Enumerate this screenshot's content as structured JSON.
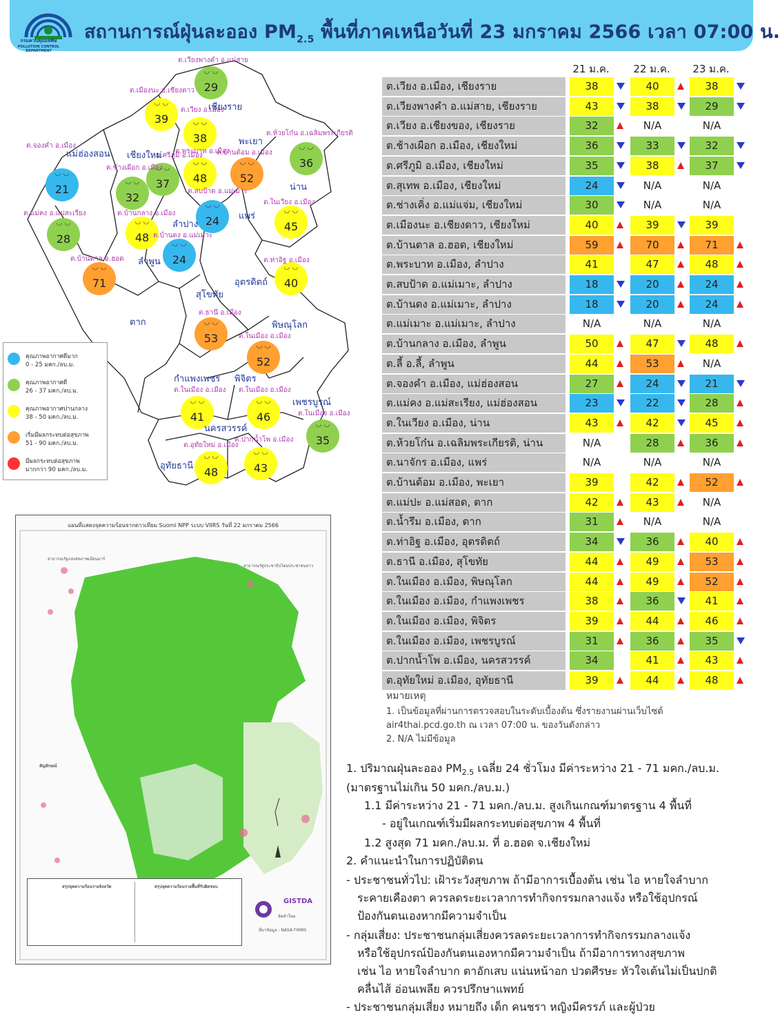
{
  "header": {
    "title_pre": "สถานการณ์ฝุ่นละออง PM",
    "title_sub": "2.5",
    "title_post": " พื้นที่ภาคเหนือวันที่ 23 มกราคม 2566 เวลา 07:00 น.",
    "logo_caption": "กรมควบคุมมลพิษ",
    "logo_caption_en": "POLLUTION CONTROL DEPARTMENT"
  },
  "colors": {
    "blue": "#36b8ee",
    "green": "#8fd14f",
    "yellow": "#ffff1a",
    "orange": "#ffa030",
    "red": "#ff3333"
  },
  "map": {
    "bubbles": [
      {
        "v": "29",
        "c": "green"
      },
      {
        "v": "39",
        "c": "yellow"
      },
      {
        "v": "38",
        "c": "yellow"
      },
      {
        "v": "36",
        "c": "green"
      },
      {
        "v": "21",
        "c": "blue"
      },
      {
        "v": "32",
        "c": "green"
      },
      {
        "v": "37",
        "c": "green"
      },
      {
        "v": "48",
        "c": "yellow"
      },
      {
        "v": "52",
        "c": "orange"
      },
      {
        "v": "24",
        "c": "blue"
      },
      {
        "v": "45",
        "c": "yellow"
      },
      {
        "v": "28",
        "c": "green"
      },
      {
        "v": "48",
        "c": "yellow"
      },
      {
        "v": "24",
        "c": "blue"
      },
      {
        "v": "71",
        "c": "orange"
      },
      {
        "v": "40",
        "c": "yellow"
      },
      {
        "v": "53",
        "c": "orange"
      },
      {
        "v": "52",
        "c": "orange"
      },
      {
        "v": "41",
        "c": "yellow"
      },
      {
        "v": "46",
        "c": "yellow"
      },
      {
        "v": "35",
        "c": "green"
      },
      {
        "v": "48",
        "c": "yellow"
      },
      {
        "v": "43",
        "c": "yellow"
      }
    ],
    "station_labels": [
      "ต.เวียงพางคำ อ.แม่สาย",
      "ต.เมืองนะ อ.เชียงดาว",
      "ต.เวียง อ.เมือง",
      "ต.ห้วยโก๋น อ.เฉลิมพระเกียรติ",
      "ต.จองคำ อ.เมือง",
      "ต.ศรีภูมิ อ.เมือง",
      "ต.พระบาท อ.เมือง",
      "ต.บ้านต้อม อ.เมือง",
      "ต.ช้างเผือก อ.เมือง",
      "ต.สบป้าด อ.แม่เมาะ",
      "ต.ในเวียง อ.เมือง",
      "ต.แม่คง อ.แม่สะเรียง",
      "ต.บ้านกลาง อ.เมือง",
      "ต.บ้านดง อ.แม่เมาะ",
      "ต.บ้านตาล อ.ฮอด",
      "ต.ท่าอิฐ อ.เมือง",
      "ต.ธานี อ.เมือง",
      "ต.ในเมือง อ.เมือง",
      "ต.ในเมือง อ.เมือง",
      "ต.ในเมือง อ.เมือง",
      "ต.ในเมือง อ.เมือง",
      "ต.อุทัยใหม่ อ.เมือง",
      "ต.ปากน้ำโพ อ.เมือง"
    ],
    "provinces": [
      "เชียงราย",
      "แม่ฮ่องสอน",
      "เชียงใหม่",
      "พะเยา",
      "น่าน",
      "ลำปาง",
      "แพร่",
      "ลำพูน",
      "อุตรดิตถ์",
      "สุโขทัย",
      "ตาก",
      "พิษณุโลก",
      "กำแพงเพชร",
      "พิจิตร",
      "เพชรบูรณ์",
      "นครสวรรค์",
      "อุทัยธานี"
    ]
  },
  "legend": [
    {
      "t1": "คุณภาพอากาศดีมาก",
      "t2": "0 - 25 มคก./ลบ.ม.",
      "c": "blue"
    },
    {
      "t1": "คุณภาพอากาศดี",
      "t2": "26 - 37 มคก./ลบ.ม.",
      "c": "green"
    },
    {
      "t1": "คุณภาพอากาศปานกลาง",
      "t2": "38 - 50 มคก./ลบ.ม.",
      "c": "yellow"
    },
    {
      "t1": "เริ่มมีผลกระทบต่อสุขภาพ",
      "t2": "51 - 90 มคก./ลบ.ม.",
      "c": "orange"
    },
    {
      "t1": "มีผลกระทบต่อสุขภาพ",
      "t2": "มากกว่า 90 มคก./ลบ.ม.",
      "c": "red"
    }
  ],
  "satellite": {
    "title": "แผนที่แสดงจุดความร้อนจากดาวเทียม Suomi NPP ระบบ VIIRS วันที่ 22 มกราคม 2566",
    "neighbor_1": "สาธารณรัฐแห่งสหภาพเมียนมาร์",
    "neighbor_2": "สาธารณรัฐประชาธิปไตยประชาชนลาว",
    "symbols": "สัญลักษณ์",
    "box_left": "สรุปจุดความร้อนรายจังหวัด",
    "box_right": "สรุปจุดความร้อนรายพื้นที่รับผิดชอบ",
    "source": "ที่มาข้อมูล : NASA FIRMS",
    "gistda": "GISTDA",
    "maker": "จัดทำโดย"
  },
  "table": {
    "col_headers": [
      "21 ม.ค.",
      "22 ม.ค.",
      "23 ม.ค."
    ],
    "rows": [
      {
        "loc": "ต.เวียง อ.เมือง, เชียงราย",
        "v": [
          [
            "38",
            "yellow",
            "down"
          ],
          [
            "40",
            "yellow",
            "up"
          ],
          [
            "38",
            "yellow",
            "down"
          ]
        ]
      },
      {
        "loc": "ต.เวียงพางคำ อ.แม่สาย, เชียงราย",
        "v": [
          [
            "43",
            "yellow",
            "down"
          ],
          [
            "38",
            "yellow",
            "down"
          ],
          [
            "29",
            "green",
            "down"
          ]
        ]
      },
      {
        "loc": "ต.เวียง อ.เชียงของ, เชียงราย",
        "v": [
          [
            "32",
            "green",
            "up"
          ],
          [
            "N/A",
            "na",
            ""
          ],
          [
            "N/A",
            "na",
            ""
          ]
        ]
      },
      {
        "loc": "ต.ช้างเผือก อ.เมือง, เชียงใหม่",
        "v": [
          [
            "36",
            "green",
            "down"
          ],
          [
            "33",
            "green",
            "down"
          ],
          [
            "32",
            "green",
            "down"
          ]
        ]
      },
      {
        "loc": "ต.ศรีภูมิ อ.เมือง, เชียงใหม่",
        "v": [
          [
            "35",
            "green",
            "down"
          ],
          [
            "38",
            "yellow",
            "up"
          ],
          [
            "37",
            "green",
            "down"
          ]
        ]
      },
      {
        "loc": "ต.สุเทพ อ.เมือง, เชียงใหม่",
        "v": [
          [
            "24",
            "blue",
            "down"
          ],
          [
            "N/A",
            "na",
            ""
          ],
          [
            "N/A",
            "na",
            ""
          ]
        ]
      },
      {
        "loc": "ต.ช่างเคิ่ง อ.แม่แจ่ม, เชียงใหม่",
        "v": [
          [
            "30",
            "green",
            "down"
          ],
          [
            "N/A",
            "na",
            ""
          ],
          [
            "N/A",
            "na",
            ""
          ]
        ]
      },
      {
        "loc": "ต.เมืองนะ อ.เชียงดาว, เชียงใหม่",
        "v": [
          [
            "40",
            "yellow",
            "up"
          ],
          [
            "39",
            "yellow",
            "down"
          ],
          [
            "39",
            "yellow",
            ""
          ]
        ]
      },
      {
        "loc": "ต.บ้านตาล อ.ฮอด, เชียงใหม่",
        "v": [
          [
            "59",
            "orange",
            "up"
          ],
          [
            "70",
            "orange",
            "up"
          ],
          [
            "71",
            "orange",
            "up"
          ]
        ]
      },
      {
        "loc": "ต.พระบาท อ.เมือง, ลำปาง",
        "v": [
          [
            "41",
            "yellow",
            ""
          ],
          [
            "47",
            "yellow",
            "up"
          ],
          [
            "48",
            "yellow",
            "up"
          ]
        ]
      },
      {
        "loc": "ต.สบป้าด อ.แม่เมาะ, ลำปาง",
        "v": [
          [
            "18",
            "blue",
            "down"
          ],
          [
            "20",
            "blue",
            "up"
          ],
          [
            "24",
            "blue",
            "up"
          ]
        ]
      },
      {
        "loc": "ต.บ้านดง อ.แม่เมาะ, ลำปาง",
        "v": [
          [
            "18",
            "blue",
            "down"
          ],
          [
            "20",
            "blue",
            "up"
          ],
          [
            "24",
            "blue",
            "up"
          ]
        ]
      },
      {
        "loc": "ต.แม่เมาะ อ.แม่เมาะ, ลำปาง",
        "v": [
          [
            "N/A",
            "na",
            ""
          ],
          [
            "N/A",
            "na",
            ""
          ],
          [
            "N/A",
            "na",
            ""
          ]
        ]
      },
      {
        "loc": "ต.บ้านกลาง อ.เมือง, ลำพูน",
        "v": [
          [
            "50",
            "yellow",
            "up"
          ],
          [
            "47",
            "yellow",
            "down"
          ],
          [
            "48",
            "yellow",
            "up"
          ]
        ]
      },
      {
        "loc": "ต.ลี้ อ.ลี้, ลำพูน",
        "v": [
          [
            "44",
            "yellow",
            "up"
          ],
          [
            "53",
            "orange",
            "up"
          ],
          [
            "N/A",
            "na",
            ""
          ]
        ]
      },
      {
        "loc": "ต.จองคำ อ.เมือง, แม่ฮ่องสอน",
        "v": [
          [
            "27",
            "green",
            "up"
          ],
          [
            "24",
            "blue",
            "down"
          ],
          [
            "21",
            "blue",
            "down"
          ]
        ]
      },
      {
        "loc": "ต.แม่คง อ.แม่สะเรียง, แม่ฮ่องสอน",
        "v": [
          [
            "23",
            "blue",
            "down"
          ],
          [
            "22",
            "blue",
            "down"
          ],
          [
            "28",
            "green",
            "up"
          ]
        ]
      },
      {
        "loc": "ต.ในเวียง อ.เมือง, น่าน",
        "v": [
          [
            "43",
            "yellow",
            "up"
          ],
          [
            "42",
            "yellow",
            "down"
          ],
          [
            "45",
            "yellow",
            "up"
          ]
        ]
      },
      {
        "loc": "ต.ห้วยโก๋น อ.เฉลิมพระเกียรติ, น่าน",
        "v": [
          [
            "N/A",
            "na",
            ""
          ],
          [
            "28",
            "green",
            "up"
          ],
          [
            "36",
            "green",
            "up"
          ]
        ]
      },
      {
        "loc": "ต.นาจักร อ.เมือง, แพร่",
        "v": [
          [
            "N/A",
            "na",
            ""
          ],
          [
            "N/A",
            "na",
            ""
          ],
          [
            "N/A",
            "na",
            ""
          ]
        ]
      },
      {
        "loc": "ต.บ้านต้อม อ.เมือง, พะเยา",
        "v": [
          [
            "39",
            "yellow",
            ""
          ],
          [
            "42",
            "yellow",
            "up"
          ],
          [
            "52",
            "orange",
            "up"
          ]
        ]
      },
      {
        "loc": "ต.แม่ปะ อ.แม่สอด, ตาก",
        "v": [
          [
            "42",
            "yellow",
            "up"
          ],
          [
            "43",
            "yellow",
            "up"
          ],
          [
            "N/A",
            "na",
            ""
          ]
        ]
      },
      {
        "loc": "ต.น้ำรึม อ.เมือง, ตาก",
        "v": [
          [
            "31",
            "green",
            "up"
          ],
          [
            "N/A",
            "na",
            ""
          ],
          [
            "N/A",
            "na",
            ""
          ]
        ]
      },
      {
        "loc": "ต.ท่าอิฐ อ.เมือง, อุตรดิตถ์",
        "v": [
          [
            "34",
            "green",
            "down"
          ],
          [
            "36",
            "green",
            "up"
          ],
          [
            "40",
            "yellow",
            "up"
          ]
        ]
      },
      {
        "loc": "ต.ธานี อ.เมือง, สุโขทัย",
        "v": [
          [
            "44",
            "yellow",
            "up"
          ],
          [
            "49",
            "yellow",
            "up"
          ],
          [
            "53",
            "orange",
            "up"
          ]
        ]
      },
      {
        "loc": "ต.ในเมือง อ.เมือง, พิษณุโลก",
        "v": [
          [
            "44",
            "yellow",
            "up"
          ],
          [
            "49",
            "yellow",
            "up"
          ],
          [
            "52",
            "orange",
            "up"
          ]
        ]
      },
      {
        "loc": "ต.ในเมือง อ.เมือง, กำแพงเพชร",
        "v": [
          [
            "38",
            "yellow",
            "up"
          ],
          [
            "36",
            "green",
            "down"
          ],
          [
            "41",
            "yellow",
            "up"
          ]
        ]
      },
      {
        "loc": "ต.ในเมือง อ.เมือง, พิจิตร",
        "v": [
          [
            "39",
            "yellow",
            "up"
          ],
          [
            "44",
            "yellow",
            "up"
          ],
          [
            "46",
            "yellow",
            "up"
          ]
        ]
      },
      {
        "loc": "ต.ในเมือง อ.เมือง, เพชรบูรณ์",
        "v": [
          [
            "31",
            "green",
            "up"
          ],
          [
            "36",
            "green",
            "up"
          ],
          [
            "35",
            "green",
            "down"
          ]
        ]
      },
      {
        "loc": "ต.ปากน้ำโพ อ.เมือง, นครสวรรค์",
        "v": [
          [
            "34",
            "green",
            ""
          ],
          [
            "41",
            "yellow",
            "up"
          ],
          [
            "43",
            "yellow",
            "up"
          ]
        ]
      },
      {
        "loc": "ต.อุทัยใหม่ อ.เมือง, อุทัยธานี",
        "v": [
          [
            "39",
            "yellow",
            "up"
          ],
          [
            "44",
            "yellow",
            "up"
          ],
          [
            "48",
            "yellow",
            "up"
          ]
        ]
      }
    ]
  },
  "notes": {
    "heading": "หมายเหตุ",
    "n1a": "1. เป็นข้อมูลที่ผ่านการตรวจสอบในระดับเบื้องต้น ซึ่งรายงานผ่านเว็บไซต์",
    "n1b": "air4thai.pcd.go.th ณ เวลา 07:00 น. ของวันดังกล่าว",
    "n2": "2. N/A ไม่มีข้อมูล"
  },
  "summary": {
    "p1a": "1. ปริมาณฝุ่นละออง PM",
    "p1sub": "2.5",
    "p1b": " เฉลี่ย 24 ชั่วโมง มีค่าระหว่าง 21 - 71 มคก./ลบ.ม.",
    "p1c": "(มาตรฐานไม่เกิน 50 มคก./ลบ.ม.)",
    "p11": "1.1 มีค่าระหว่าง 21 - 71 มคก./ลบ.ม. สูงเกินเกณฑ์มาตรฐาน 4 พื้นที่",
    "p11b": "- อยู่ในเกณฑ์เริ่มมีผลกระทบต่อสุขภาพ 4 พื้นที่",
    "p12": "1.2 สูงสุด 71 มคก./ลบ.ม. ที่ อ.ฮอด จ.เชียงใหม่",
    "p2": "2. คำแนะนำในการปฏิบัติตน",
    "g1": "- ประชาชนทั่วไป: เฝ้าระวังสุขภาพ ถ้ามีอาการเบื้องต้น เช่น ไอ หายใจลำบาก",
    "g2": "ระคายเคืองตา ควรลดระยะเวลาการทำกิจกรรมกลางแจ้ง หรือใช้อุปกรณ์",
    "g3": "ป้องกันตนเองหากมีความจำเป็น",
    "r1": "- กลุ่มเสี่ยง: ประชาชนกลุ่มเสี่ยงควรลดระยะเวลาการทำกิจกรรมกลางแจ้ง",
    "r2": "หรือใช้อุปกรณ์ป้องกันตนเองหากมีความจำเป็น ถ้ามีอาการทางสุขภาพ",
    "r3": "เช่น ไอ หายใจลำบาก ตาอักเสบ แน่นหน้าอก ปวดศีรษะ หัวใจเต้นไม่เป็นปกติ",
    "r4": "คลื่นไส้ อ่อนเพลีย ควรปรึกษาแพทย์",
    "d1": "- ประชาชนกลุ่มเสี่ยง หมายถึง เด็ก คนชรา หญิงมีครรภ์ และผู้ป่วย"
  }
}
